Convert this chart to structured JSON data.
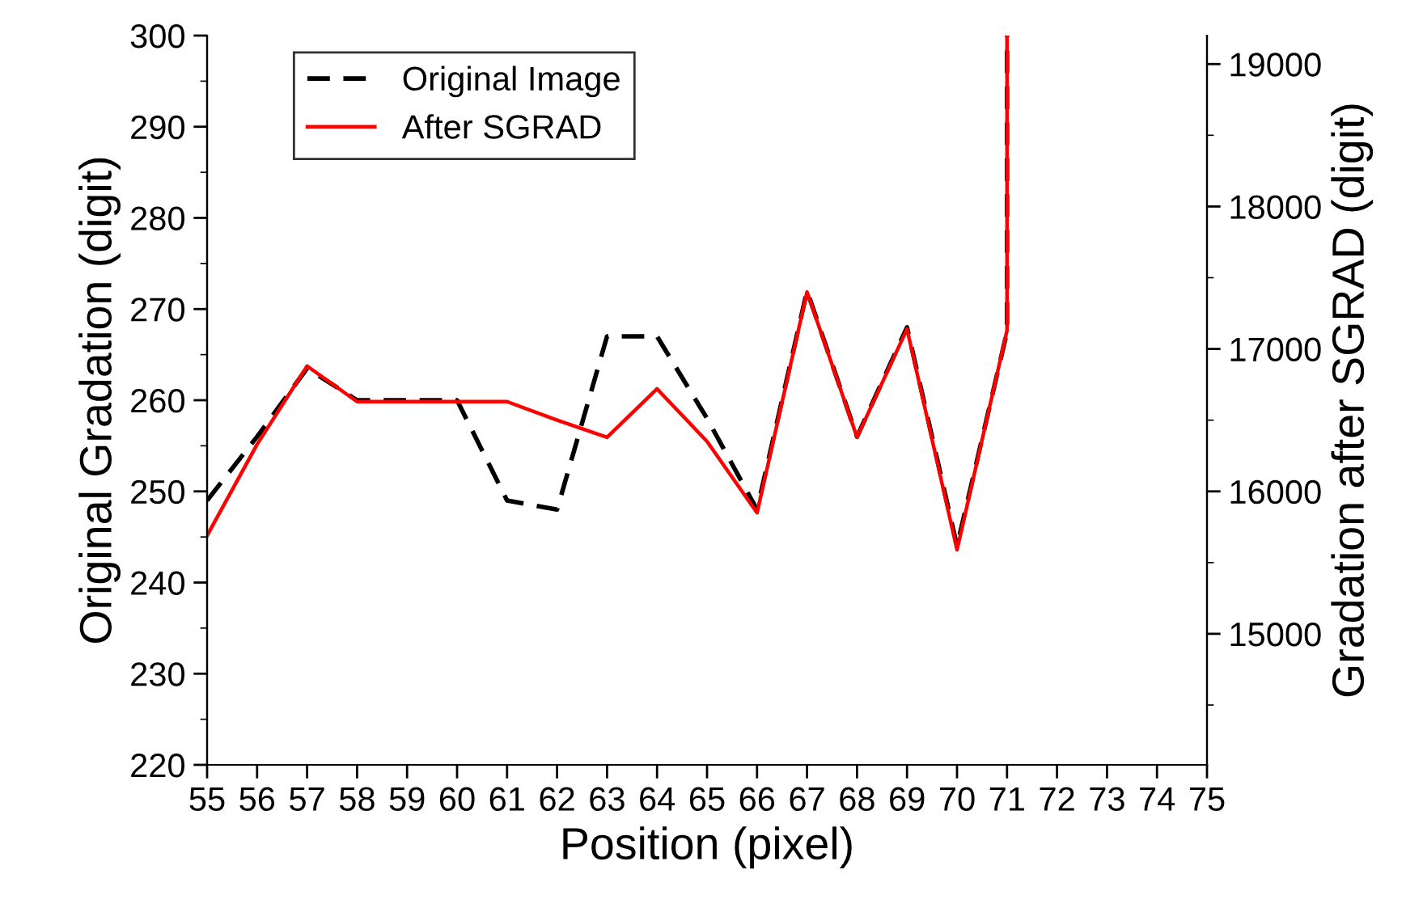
{
  "chart_data": {
    "type": "line",
    "xlabel": "Position (pixel)",
    "ylabel": "Original Gradation (digit)",
    "y2label": "Gradation after SGRAD (digit)",
    "series": [
      {
        "name": "Original Image",
        "color": "#000000",
        "line_style": "dashed",
        "x": [
          55,
          56,
          57,
          58,
          59,
          60,
          61,
          62,
          63,
          64,
          65,
          66,
          67,
          68,
          69,
          70,
          71,
          71
        ],
        "values": [
          249,
          256,
          263.5,
          260,
          260,
          260,
          249,
          248,
          267,
          267,
          258,
          248,
          272,
          256,
          268,
          244,
          267.5,
          300
        ]
      },
      {
        "name": "After SGRAD",
        "color": "#ff0000",
        "line_style": "solid",
        "axis": "y2",
        "x": [
          55,
          56,
          57,
          58,
          59,
          60,
          61,
          62,
          63,
          64,
          65,
          66,
          67,
          68,
          69,
          70,
          71,
          71
        ],
        "values": [
          15690,
          16330,
          16880,
          16630,
          16630,
          16630,
          16630,
          16500,
          16380,
          16720,
          16350,
          15850,
          17400,
          16380,
          17140,
          15590,
          17130,
          19200
        ]
      }
    ],
    "xlim": [
      55,
      75
    ],
    "xticks": [
      55,
      56,
      57,
      58,
      59,
      60,
      61,
      62,
      63,
      64,
      65,
      66,
      67,
      68,
      69,
      70,
      71,
      72,
      73,
      74,
      75
    ],
    "ylim": [
      220,
      300
    ],
    "yticks": [
      220,
      {
        "value": 225,
        "label": null
      },
      230,
      {
        "value": 235,
        "label": null
      },
      240,
      {
        "value": 245,
        "label": null
      },
      250,
      {
        "value": 255,
        "label": null
      },
      260,
      {
        "value": 265,
        "label": null
      },
      270,
      {
        "value": 275,
        "label": null
      },
      280,
      {
        "value": 285,
        "label": null
      },
      290,
      {
        "value": 295,
        "label": null
      },
      300
    ],
    "y2lim": [
      14080,
      19200
    ],
    "y2ticks": [
      {
        "value": 14500,
        "label": null
      },
      15000,
      {
        "value": 15500,
        "label": null
      },
      16000,
      {
        "value": 16500,
        "label": null
      },
      17000,
      {
        "value": 17500,
        "label": null
      },
      18000,
      {
        "value": 18500,
        "label": null
      },
      19000
    ],
    "legend": "top left",
    "grid": false
  }
}
